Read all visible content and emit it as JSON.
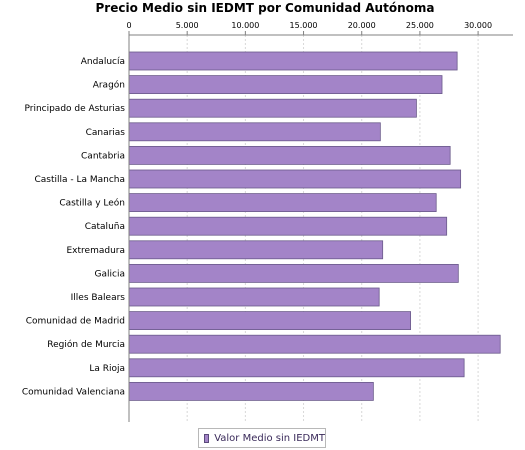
{
  "chart_data": {
    "type": "bar",
    "orientation": "horizontal",
    "title": "Precio Medio sin IEDMT por Comunidad Autónoma",
    "categories": [
      "Andalucía",
      "Aragón",
      "Principado de Asturias",
      "Canarias",
      "Cantabria",
      "Castilla - La Mancha",
      "Castilla y León",
      "Cataluña",
      "Extremadura",
      "Galicia",
      "Illes Balears",
      "Comunidad de Madrid",
      "Región de Murcia",
      "La Rioja",
      "Comunidad Valenciana"
    ],
    "series": [
      {
        "name": "Valor Medio sin IEDMT",
        "values": [
          28200,
          26900,
          24700,
          21600,
          27600,
          28500,
          26400,
          27300,
          21800,
          28300,
          21500,
          24200,
          31900,
          28800,
          21000
        ]
      }
    ],
    "xlim": [
      0,
      33000
    ],
    "xticks": [
      "0",
      "5.000",
      "10.000",
      "15.000",
      "20.000",
      "25.000",
      "30.000"
    ],
    "xtick_values": [
      0,
      5000,
      10000,
      15000,
      20000,
      25000,
      30000
    ],
    "grid": true,
    "axis_position": "top",
    "legend_position": "bottom-center",
    "colors": {
      "bar": "#a384c8",
      "bar_stroke": "#6a5a8a",
      "grid": "#d8d8d8",
      "axis": "#808080"
    }
  }
}
